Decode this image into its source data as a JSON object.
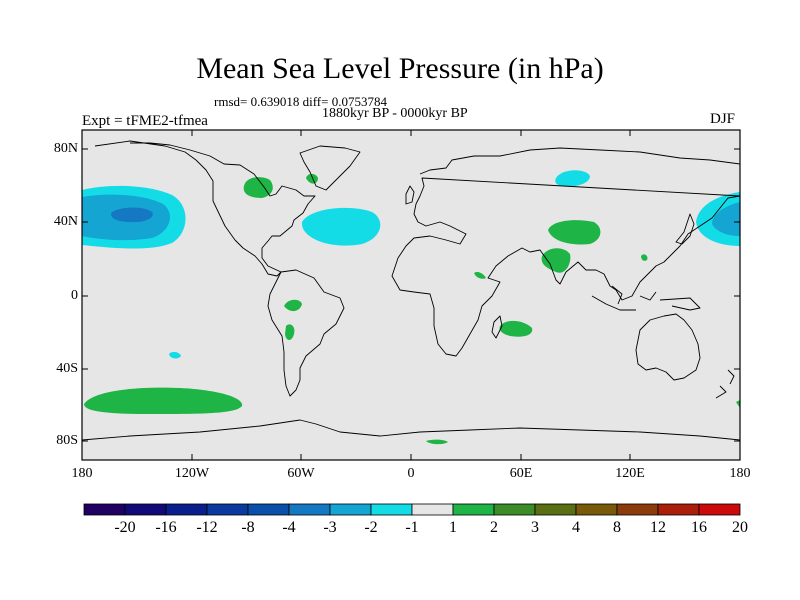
{
  "header": {
    "title": "Mean Sea Level Pressure (in hPa)",
    "stats": "rmsd= 0.639018 diff= 0.0753784",
    "period": "1880kyr BP - 0000kyr BP",
    "experiment": "Expt = tFME2-tfmea",
    "season": "DJF"
  },
  "axes": {
    "lat_labels": [
      "80N",
      "40N",
      "0",
      "40S",
      "80S"
    ],
    "lon_labels": [
      "180",
      "120W",
      "60W",
      "0",
      "60E",
      "120E",
      "180"
    ]
  },
  "colorbar": {
    "labels": [
      "-20",
      "-16",
      "-12",
      "-8",
      "-4",
      "-3",
      "-2",
      "-1",
      "1",
      "2",
      "3",
      "4",
      "8",
      "12",
      "16",
      "20"
    ],
    "colors": [
      "#200060",
      "#100a78",
      "#0a1e8c",
      "#0a3aa0",
      "#0a50aa",
      "#1478c3",
      "#14a5d2",
      "#14dce6",
      "#e6e6e6",
      "#1eb446",
      "#3c8c28",
      "#5a6e14",
      "#785a0a",
      "#8c3c0a",
      "#aa1e0a",
      "#cd0a0a"
    ]
  },
  "map": {
    "background_color": "#e6e6e6",
    "coastline_color": "#000000"
  }
}
